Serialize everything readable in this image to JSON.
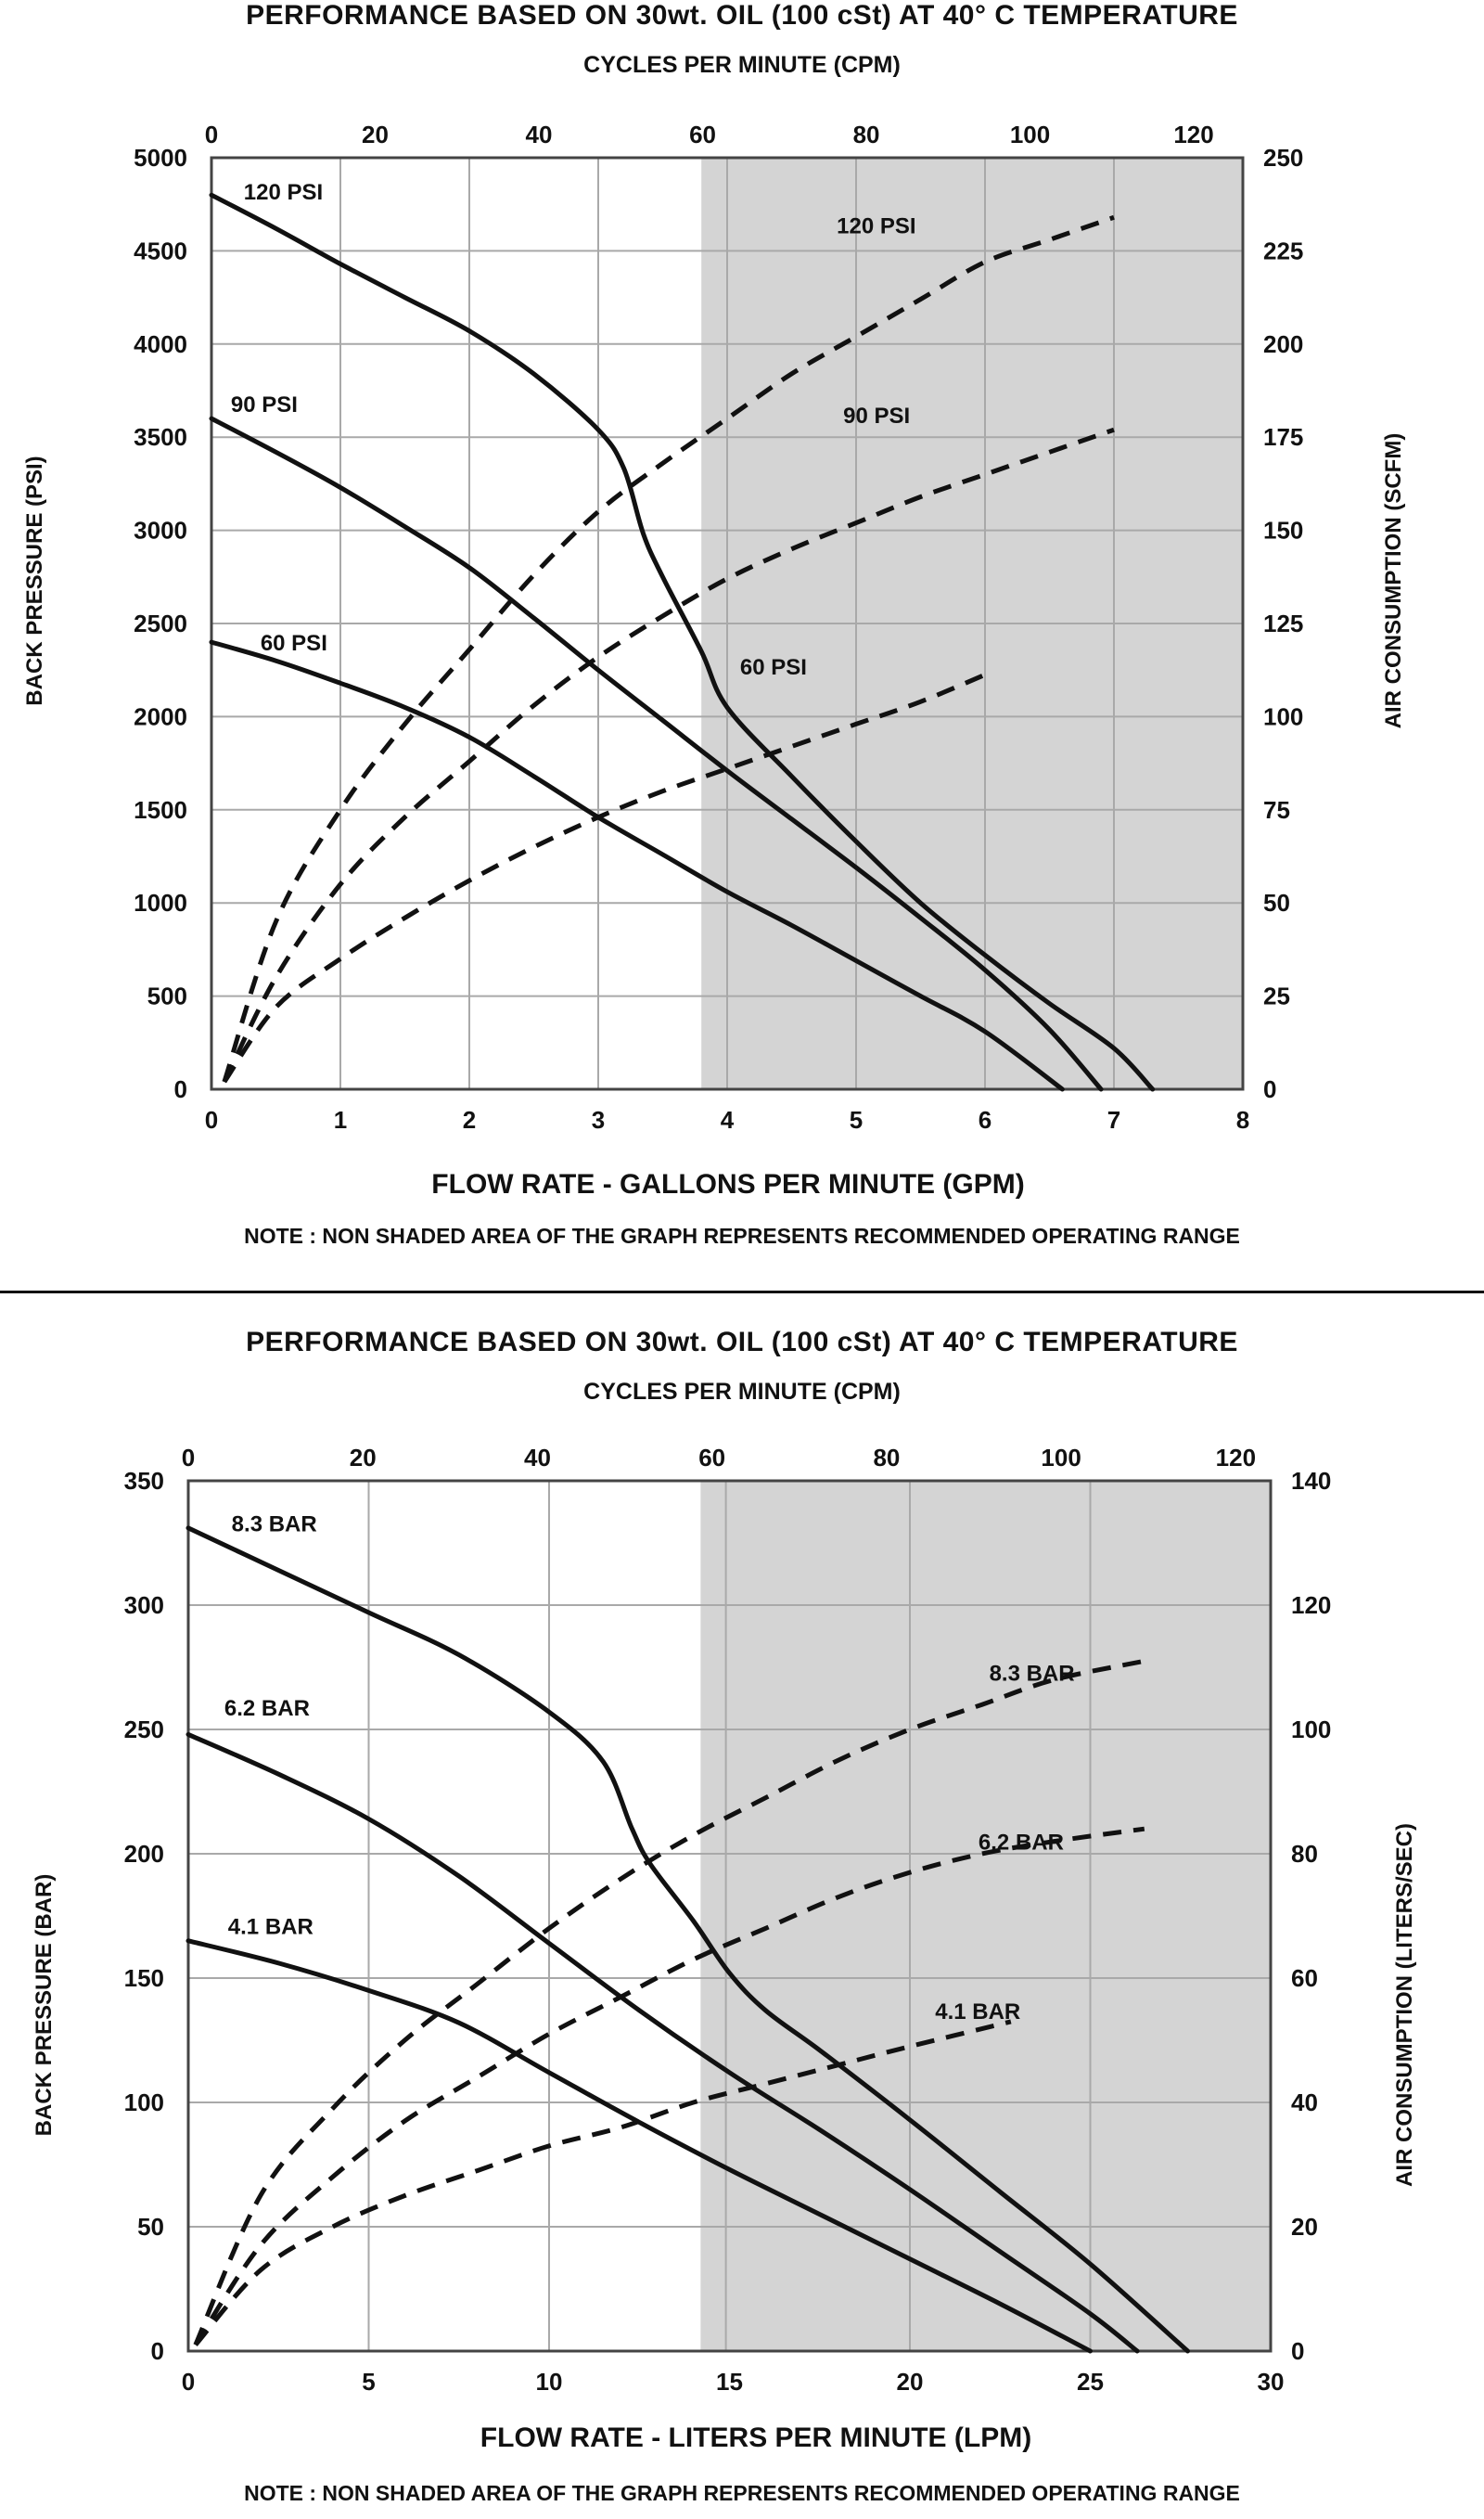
{
  "chart_data": [
    {
      "type": "line",
      "title": "PERFORMANCE BASED ON 30wt. OIL (100 cSt) AT 40° C TEMPERATURE",
      "x2label": "CYCLES PER MINUTE (CPM)",
      "xlabel": "FLOW RATE - GALLONS PER MINUTE (GPM)",
      "ylabel": "BACK PRESSURE (PSI)",
      "y2label": "AIR CONSUMPTION (SCFM)",
      "note": "NOTE : NON SHADED AREA OF THE GRAPH REPRESENTS RECOMMENDED OPERATING RANGE",
      "xlim": [
        0,
        8
      ],
      "ylim": [
        0,
        5000
      ],
      "x2lim": [
        0,
        126
      ],
      "y2lim": [
        0,
        250
      ],
      "xticks": [
        "0",
        "1",
        "2",
        "3",
        "4",
        "5",
        "6",
        "7",
        "8"
      ],
      "yticks": [
        "0",
        "500",
        "1000",
        "1500",
        "2000",
        "2500",
        "3000",
        "3500",
        "4000",
        "4500",
        "5000"
      ],
      "x2ticks": [
        "0",
        "20",
        "40",
        "60",
        "80",
        "100",
        "120"
      ],
      "y2ticks": [
        "0",
        "25",
        "50",
        "75",
        "100",
        "125",
        "150",
        "175",
        "200",
        "225",
        "250"
      ],
      "grid": true,
      "shaded_region_x": [
        3.8,
        8
      ],
      "series": [
        {
          "name": "120 PSI",
          "style": "solid",
          "axis": "left",
          "x": [
            0,
            0.5,
            1,
            1.5,
            2,
            2.5,
            3,
            3.2,
            3.35,
            3.5,
            3.8,
            4,
            4.5,
            5,
            5.5,
            6,
            6.5,
            7,
            7.3
          ],
          "y": [
            4800,
            4620,
            4430,
            4250,
            4070,
            3840,
            3540,
            3330,
            2980,
            2750,
            2350,
            2050,
            1680,
            1330,
            1000,
            720,
            460,
            220,
            0
          ]
        },
        {
          "name": "90 PSI",
          "style": "solid",
          "axis": "left",
          "x": [
            0,
            0.5,
            1,
            1.5,
            2,
            2.5,
            3,
            3.5,
            4,
            4.5,
            5,
            5.5,
            6,
            6.5,
            6.9
          ],
          "y": [
            3600,
            3420,
            3230,
            3020,
            2800,
            2530,
            2250,
            1980,
            1710,
            1450,
            1190,
            920,
            640,
            320,
            0
          ]
        },
        {
          "name": "60 PSI",
          "style": "solid",
          "axis": "left",
          "x": [
            0,
            0.5,
            1,
            1.5,
            2,
            2.5,
            3,
            3.5,
            4,
            4.5,
            5,
            5.5,
            6,
            6.6
          ],
          "y": [
            2400,
            2300,
            2180,
            2050,
            1890,
            1680,
            1460,
            1260,
            1060,
            880,
            690,
            500,
            310,
            0
          ]
        },
        {
          "name": "120 PSI",
          "style": "dashed",
          "axis": "right",
          "x": [
            0.1,
            0.5,
            1,
            1.5,
            2,
            2.5,
            3,
            3.5,
            4,
            4.5,
            5,
            5.5,
            6,
            6.5,
            7
          ],
          "y": [
            2,
            45,
            75,
            98,
            118,
            138,
            155,
            168,
            180,
            192,
            202,
            212,
            222,
            228,
            234
          ]
        },
        {
          "name": "90 PSI",
          "style": "dashed",
          "axis": "right",
          "x": [
            0.1,
            0.5,
            1,
            1.5,
            2,
            2.5,
            3,
            3.5,
            4,
            4.5,
            5,
            5.5,
            6,
            6.5,
            7
          ],
          "y": [
            2,
            30,
            55,
            73,
            88,
            103,
            116,
            127,
            137,
            145,
            152,
            159,
            165,
            171,
            177
          ]
        },
        {
          "name": "60 PSI",
          "style": "dashed",
          "axis": "right",
          "x": [
            0.1,
            0.5,
            1,
            1.5,
            2,
            2.5,
            3,
            3.5,
            4,
            4.5,
            5,
            5.5,
            6.05
          ],
          "y": [
            2,
            22,
            35,
            46,
            56,
            65,
            73,
            80,
            86,
            92,
            98,
            104,
            112
          ]
        }
      ],
      "curve_labels": [
        {
          "text": "120 PSI",
          "x": 0.25,
          "y": 4820,
          "axis": "left"
        },
        {
          "text": "90 PSI",
          "x": 0.15,
          "y": 3680,
          "axis": "left"
        },
        {
          "text": "60 PSI",
          "x": 0.38,
          "y": 2400,
          "axis": "left"
        },
        {
          "text": "120 PSI",
          "x": 4.85,
          "y": 4640,
          "axis": "left"
        },
        {
          "text": "90 PSI",
          "x": 4.9,
          "y": 3620,
          "axis": "left"
        },
        {
          "text": "60 PSI",
          "x": 4.1,
          "y": 2270,
          "axis": "left"
        }
      ]
    },
    {
      "type": "line",
      "title": "PERFORMANCE BASED ON 30wt. OIL (100 cSt) AT 40° C TEMPERATURE",
      "x2label": "CYCLES PER MINUTE (CPM)",
      "xlabel": "FLOW RATE - LITERS PER MINUTE (LPM)",
      "ylabel": "BACK PRESSURE (BAR)",
      "y2label": "AIR CONSUMPTION (LITERS/SEC)",
      "note": "NOTE : NON SHADED AREA OF THE GRAPH REPRESENTS RECOMMENDED OPERATING RANGE",
      "xlim": [
        0,
        30
      ],
      "ylim": [
        0,
        350
      ],
      "x2lim": [
        0,
        124
      ],
      "y2lim": [
        0,
        140
      ],
      "xticks": [
        "0",
        "5",
        "10",
        "15",
        "20",
        "25",
        "30"
      ],
      "xtick_values": [
        0,
        5,
        10,
        15,
        20,
        25,
        30
      ],
      "yticks": [
        "0",
        "50",
        "100",
        "150",
        "200",
        "250",
        "300",
        "350"
      ],
      "x2ticks": [
        "0",
        "20",
        "40",
        "60",
        "80",
        "100",
        "120"
      ],
      "y2ticks": [
        "0",
        "20",
        "40",
        "60",
        "80",
        "100",
        "120",
        "140"
      ],
      "grid": true,
      "vertical_gridlines_x": [
        0,
        5,
        10,
        14.9,
        20,
        25,
        30
      ],
      "shaded_region_x": [
        14.2,
        30
      ],
      "series": [
        {
          "name": "8.3 BAR",
          "style": "solid",
          "axis": "left",
          "x": [
            0,
            2.5,
            5,
            7.5,
            10,
            11.5,
            12.3,
            12.8,
            14,
            15,
            16,
            17.5,
            20,
            22.5,
            25,
            27.7
          ],
          "y": [
            331,
            314,
            297,
            280,
            257,
            237,
            210,
            196,
            173,
            152,
            137,
            121,
            93,
            64,
            35,
            0
          ]
        },
        {
          "name": "6.2 BAR",
          "style": "solid",
          "axis": "left",
          "x": [
            0,
            2.5,
            5,
            7.5,
            10,
            12.5,
            15,
            17.5,
            20,
            22.5,
            25,
            26.3
          ],
          "y": [
            248,
            232,
            214,
            191,
            164,
            137,
            112,
            89,
            65,
            40,
            15,
            0
          ]
        },
        {
          "name": "4.1 BAR",
          "style": "solid",
          "axis": "left",
          "x": [
            0,
            2.5,
            5,
            7.5,
            10,
            12.5,
            15,
            17.5,
            20,
            22.5,
            25
          ],
          "y": [
            165,
            156,
            145,
            132,
            112,
            92,
            73,
            55,
            37,
            19,
            0
          ]
        },
        {
          "name": "8.3 BAR",
          "style": "dashed",
          "axis": "right",
          "x": [
            0.2,
            2,
            4,
            6,
            8,
            10,
            12,
            14,
            16,
            18,
            20,
            22,
            24,
            26.5
          ],
          "y": [
            1,
            25,
            39,
            50,
            59,
            68,
            76,
            83,
            89,
            95,
            100,
            104,
            108,
            111
          ]
        },
        {
          "name": "6.2 BAR",
          "style": "dashed",
          "axis": "right",
          "x": [
            0.2,
            2,
            4,
            6,
            8,
            10,
            12,
            14,
            16,
            18,
            20,
            22,
            24,
            26.5
          ],
          "y": [
            1,
            17,
            28,
            37,
            44,
            51,
            57,
            63,
            68,
            73,
            77,
            80,
            82,
            84
          ]
        },
        {
          "name": "4.1 BAR",
          "style": "dashed",
          "axis": "right",
          "x": [
            0.2,
            2,
            4,
            6,
            8,
            10,
            12,
            14,
            16,
            18,
            20,
            22.8
          ],
          "y": [
            1,
            13,
            20,
            25,
            29,
            33,
            36,
            40,
            43,
            46,
            49,
            53
          ]
        }
      ],
      "curve_labels": [
        {
          "text": "8.3 BAR",
          "x": 1.2,
          "y": 333,
          "axis": "left"
        },
        {
          "text": "6.2 BAR",
          "x": 1.0,
          "y": 259,
          "axis": "left"
        },
        {
          "text": "4.1 BAR",
          "x": 1.1,
          "y": 171,
          "axis": "left"
        },
        {
          "text": "8.3 BAR",
          "x": 22.2,
          "y": 273,
          "axis": "left"
        },
        {
          "text": "6.2 BAR",
          "x": 21.9,
          "y": 205,
          "axis": "left"
        },
        {
          "text": "4.1 BAR",
          "x": 20.7,
          "y": 137,
          "axis": "left"
        }
      ]
    }
  ]
}
